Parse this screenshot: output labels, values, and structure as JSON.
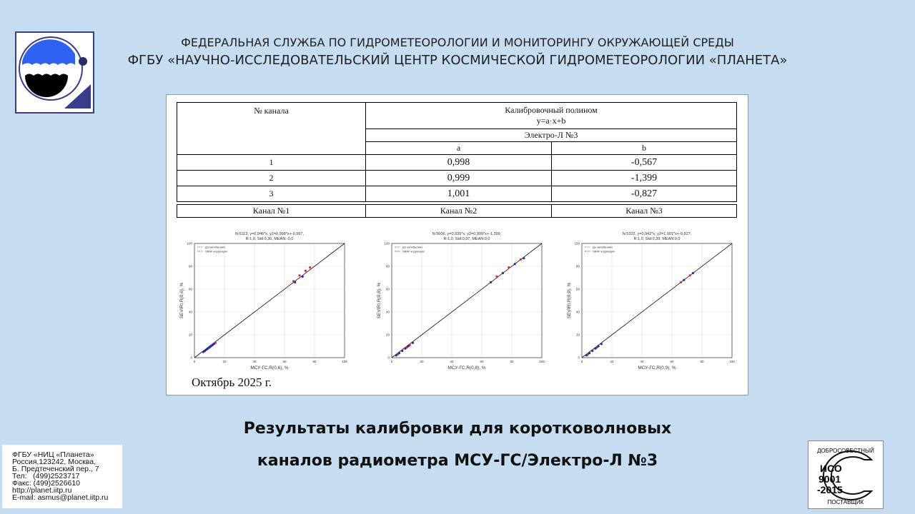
{
  "header": {
    "line1": "ФЕДЕРАЛЬНАЯ СЛУЖБА ПО ГИДРОМЕТЕОРОЛОГИИ И МОНИТОРИНГУ ОКРУЖАЮЩЕЙ СРЕДЫ",
    "line2": "ФГБУ «НАУЧНО-ИССЛЕДОВАТЕЛЬСКИЙ ЦЕНТР КОСМИЧЕСКОЙ ГИДРОМЕТЕОРОЛОГИИ «ПЛАНЕТА»"
  },
  "table": {
    "col_channel": "№ канала",
    "col_poly": "Калибровочный полином",
    "formula": "y=a·x+b",
    "satellite": "Электро-Л №3",
    "col_a": "a",
    "col_b": "b",
    "rows": [
      {
        "ch": "1",
        "a": "0,998",
        "b": "-0,567"
      },
      {
        "ch": "2",
        "a": "0,999",
        "b": "-1,399"
      },
      {
        "ch": "3",
        "a": "1,001",
        "b": "-0,827"
      }
    ]
  },
  "channels": [
    "Канал №1",
    "Канал №2",
    "Канал №3"
  ],
  "date": "Октябрь 2025 г.",
  "chart_data": [
    {
      "type": "scatter",
      "title": "N:6113, y=0,946*x, y2=0,998*x+-0,567,",
      "subtitle": "R:1,0, Std:0,36, MEAN:-0,0",
      "xlabel": "МСУ-ГС,R(0,6), %",
      "ylabel": "SEVIRI,R(0,6), %",
      "xlim": [
        0,
        100
      ],
      "ylim": [
        0,
        100
      ],
      "ticks": [
        0,
        20,
        40,
        60,
        80,
        100
      ],
      "grid": true,
      "legend": "top-left",
      "series": [
        {
          "name": "До калибровки",
          "color": "#d0303a",
          "points": [
            [
              6,
              5
            ],
            [
              8,
              7
            ],
            [
              10,
              9
            ],
            [
              12,
              11
            ],
            [
              14,
              13
            ],
            [
              66,
              67
            ],
            [
              70,
              72
            ],
            [
              74,
              76
            ],
            [
              77,
              79
            ]
          ]
        },
        {
          "name": "SBAF коррекция",
          "color": "#2a2ab0",
          "points": [
            [
              6,
              5
            ],
            [
              7,
              6
            ],
            [
              8,
              7
            ],
            [
              9,
              8
            ],
            [
              10,
              9
            ],
            [
              11,
              10
            ],
            [
              12,
              11
            ],
            [
              13,
              12
            ],
            [
              67,
              66
            ],
            [
              72,
              71
            ]
          ]
        }
      ]
    },
    {
      "type": "scatter",
      "title": "N:5606, y=0,935*x, y2=0,999*x+-1,399,",
      "subtitle": "R:1,0, Std:0,37, MEAN:0,0",
      "xlabel": "МСУ-ГС,R(0,8), %",
      "ylabel": "SEVIRI,R(0,8), %",
      "xlim": [
        0,
        100
      ],
      "ylim": [
        0,
        100
      ],
      "ticks": [
        0,
        20,
        40,
        60,
        80,
        100
      ],
      "grid": true,
      "legend": "top-left",
      "series": [
        {
          "name": "До калибровки",
          "color": "#d0303a",
          "points": [
            [
              4,
              3
            ],
            [
              7,
              6
            ],
            [
              10,
              9
            ],
            [
              12,
              11
            ],
            [
              70,
              71
            ],
            [
              78,
              79
            ],
            [
              86,
              86
            ]
          ]
        },
        {
          "name": "SBAF коррекция",
          "color": "#2a2ab0",
          "points": [
            [
              3,
              2
            ],
            [
              5,
              4
            ],
            [
              7,
              6
            ],
            [
              9,
              8
            ],
            [
              11,
              10
            ],
            [
              14,
              13
            ],
            [
              66,
              66
            ],
            [
              74,
              74
            ],
            [
              82,
              82
            ],
            [
              88,
              87
            ]
          ]
        }
      ]
    },
    {
      "type": "scatter",
      "title": "N:5322, y=0,942*x, y2=1,001*x+-0,827,",
      "subtitle": "R:1,0, Std:0,39, MEAN:0,0",
      "xlabel": "МСУ-ГС,R(0,9), %",
      "ylabel": "SEVIRI,R(0,9), %",
      "xlim": [
        0,
        100
      ],
      "ylim": [
        0,
        100
      ],
      "ticks": [
        0,
        20,
        40,
        60,
        80,
        100
      ],
      "grid": true,
      "legend": "top-left",
      "series": [
        {
          "name": "До калибровки",
          "color": "#d0303a",
          "points": [
            [
              4,
              3
            ],
            [
              7,
              6
            ],
            [
              10,
              9
            ],
            [
              66,
              66
            ],
            [
              72,
              72
            ]
          ]
        },
        {
          "name": "SBAF коррекция",
          "color": "#2a2ab0",
          "points": [
            [
              3,
              2
            ],
            [
              5,
              4
            ],
            [
              7,
              6
            ],
            [
              9,
              8
            ],
            [
              11,
              10
            ],
            [
              13,
              12
            ],
            [
              68,
              68
            ],
            [
              74,
              74
            ]
          ]
        }
      ]
    }
  ],
  "bottom_title": {
    "line1": "Результаты калибровки для коротковолновых",
    "line2": "каналов радиометра МСУ-ГС/Электро-Л №3"
  },
  "contact": [
    "ФГБУ «НИЦ «Планета»",
    "Россия,123242, Москва,",
    "Б. Предтеченский пер., 7",
    "Тел:   (499)2523717",
    "Факс: (499)2526610",
    "http://planet.iitp.ru",
    "E-mail: asmus@planet.iitp.ru"
  ],
  "iso": {
    "top": "ДОБРОСОВЕСТНЫЙ",
    "l1": "ИСО",
    "l2": "9001",
    "l3": "-2015",
    "bottom": "ПОСТАВЩИК"
  }
}
